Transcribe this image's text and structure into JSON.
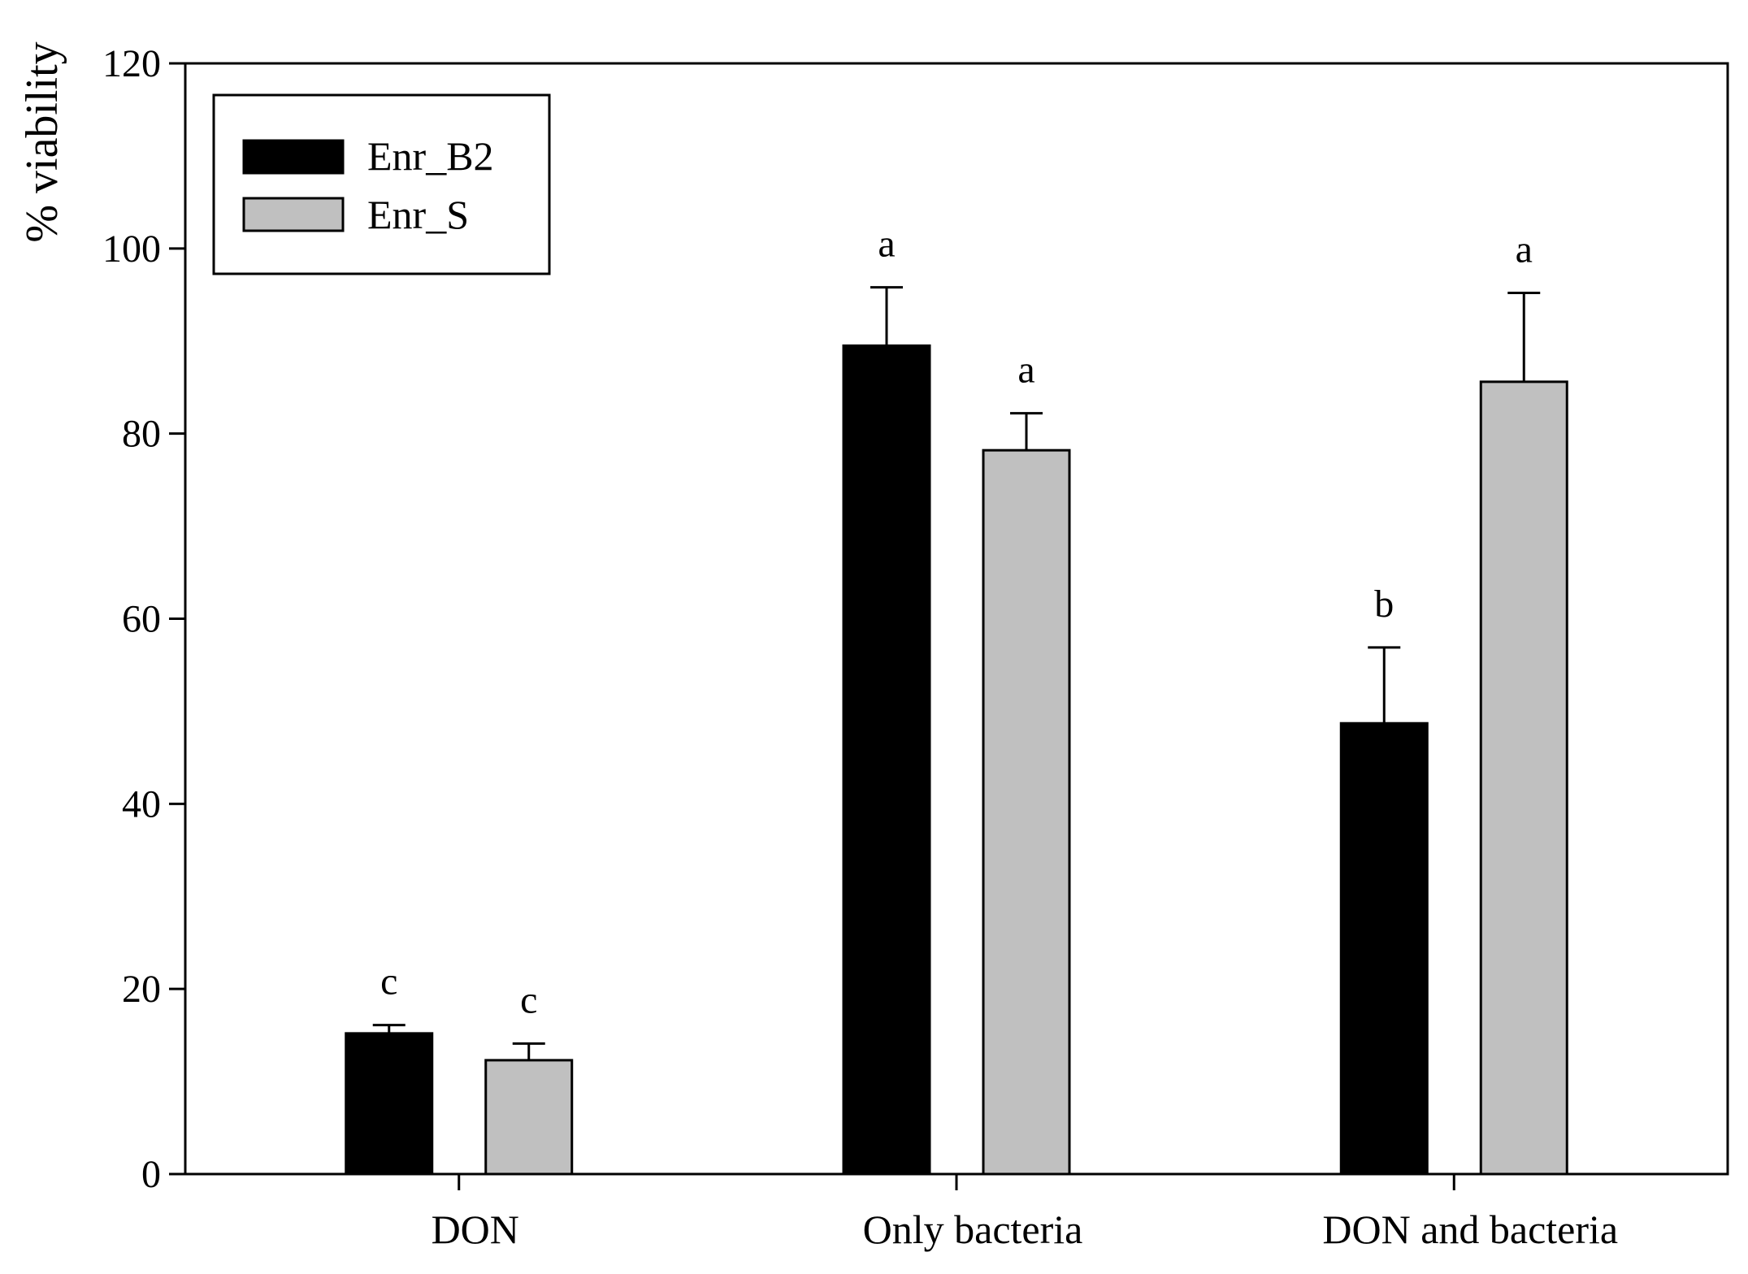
{
  "chart_data": {
    "type": "bar",
    "title": "",
    "xlabel": "",
    "ylabel": "% viability",
    "ylim": [
      0,
      120
    ],
    "yticks": [
      0,
      20,
      40,
      60,
      80,
      100,
      120
    ],
    "grid": false,
    "legend_position": "top-left",
    "categories": [
      "DON",
      "Only bacteria",
      "DON and bacteria"
    ],
    "series": [
      {
        "name": "Enr_B2",
        "color": "#000000",
        "values": [
          15.2,
          89.5,
          48.7
        ],
        "errors": [
          0.9,
          6.3,
          8.2
        ],
        "labels": [
          "c",
          "a",
          "b"
        ]
      },
      {
        "name": "Enr_S",
        "color": "#c0c0c0",
        "values": [
          12.3,
          78.2,
          85.6
        ],
        "errors": [
          1.8,
          4.0,
          9.6
        ],
        "labels": [
          "c",
          "a",
          "a"
        ]
      }
    ]
  }
}
